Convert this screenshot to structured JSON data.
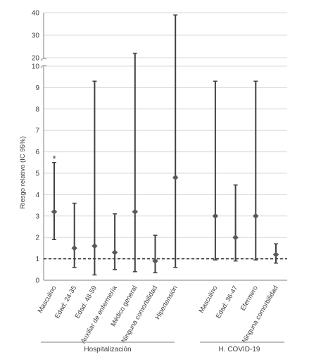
{
  "chart_data": {
    "type": "scatter",
    "subtype": "error-bar / forest plot with broken y-axis",
    "ylabel": "Riesgo relativo (IC 95%)",
    "xlabel": "",
    "ylim_lower": [
      0,
      10
    ],
    "ylim_upper": [
      20,
      40
    ],
    "yticks_lower": [
      0,
      1,
      2,
      3,
      4,
      5,
      6,
      7,
      8,
      9,
      10
    ],
    "yticks_upper": [
      20,
      30,
      40
    ],
    "axis_break": true,
    "grid": "horizontal",
    "reference_line": {
      "y": 1,
      "style": "dashed"
    },
    "points": [
      {
        "label": "Masculino",
        "group": "Hospitalización",
        "rr": 3.2,
        "ci_low": 1.9,
        "ci_high": 5.5,
        "annotation": "*"
      },
      {
        "label": "Edad: 24-35",
        "group": "Hospitalización",
        "rr": 1.5,
        "ci_low": 0.6,
        "ci_high": 3.6,
        "annotation": ""
      },
      {
        "label": "Edad: 48-59",
        "group": "Hospitalización",
        "rr": 1.6,
        "ci_low": 0.25,
        "ci_high": 9.3,
        "annotation": ""
      },
      {
        "label": "Auxiliar de enfermería",
        "group": "Hospitalización",
        "rr": 1.3,
        "ci_low": 0.5,
        "ci_high": 3.1,
        "annotation": ""
      },
      {
        "label": "Médico general",
        "group": "Hospitalización",
        "rr": 3.2,
        "ci_low": 0.4,
        "ci_high": 22,
        "annotation": ""
      },
      {
        "label": "Ninguna comorbilidad",
        "group": "Hospitalización",
        "rr": 0.9,
        "ci_low": 0.35,
        "ci_high": 2.1,
        "annotation": ""
      },
      {
        "label": "Hipertensión",
        "group": "Hospitalización",
        "rr": 4.8,
        "ci_low": 0.6,
        "ci_high": 39,
        "annotation": ""
      },
      {
        "label": "Masculino",
        "group": "H. COVID-19",
        "rr": 3.0,
        "ci_low": 0.95,
        "ci_high": 9.3,
        "annotation": ""
      },
      {
        "label": "Edad: 36-47",
        "group": "H. COVID-19",
        "rr": 2.0,
        "ci_low": 0.9,
        "ci_high": 4.45,
        "annotation": ""
      },
      {
        "label": "Efermero",
        "group": "H. COVID-19",
        "rr": 3.0,
        "ci_low": 0.95,
        "ci_high": 9.3,
        "annotation": ""
      },
      {
        "label": "Ninguna comorbilidad",
        "group": "H. COVID-19",
        "rr": 1.2,
        "ci_low": 0.8,
        "ci_high": 1.7,
        "annotation": ""
      }
    ],
    "groups": [
      {
        "name": "Hospitalización",
        "first": 0,
        "last": 6
      },
      {
        "name": "H. COVID-19",
        "first": 7,
        "last": 10
      }
    ]
  }
}
